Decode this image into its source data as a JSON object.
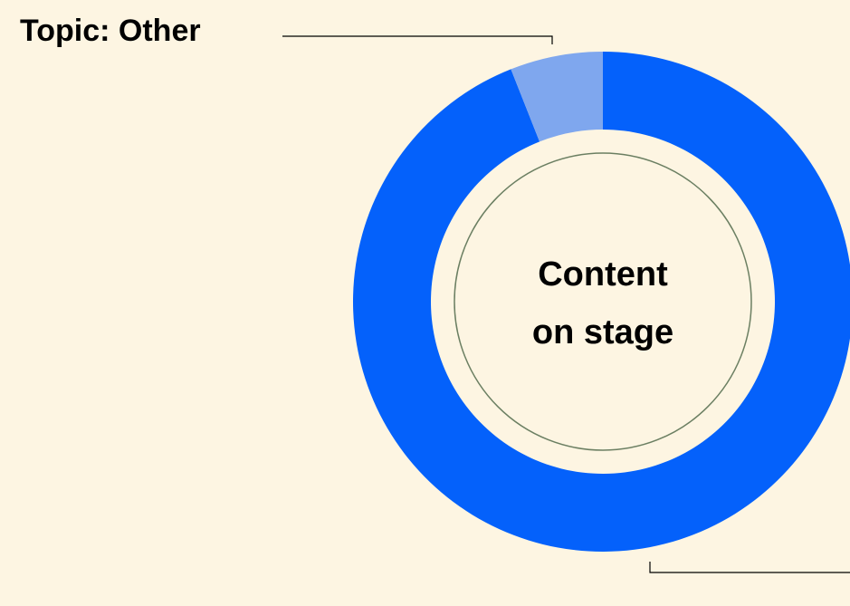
{
  "chart_data": {
    "type": "donut",
    "categories": [
      null,
      "Topic: Other"
    ],
    "values": [
      94,
      6
    ],
    "colors": [
      "#0461fb",
      "#7fa7ee"
    ],
    "center_label": [
      "Content",
      "on stage"
    ]
  }
}
